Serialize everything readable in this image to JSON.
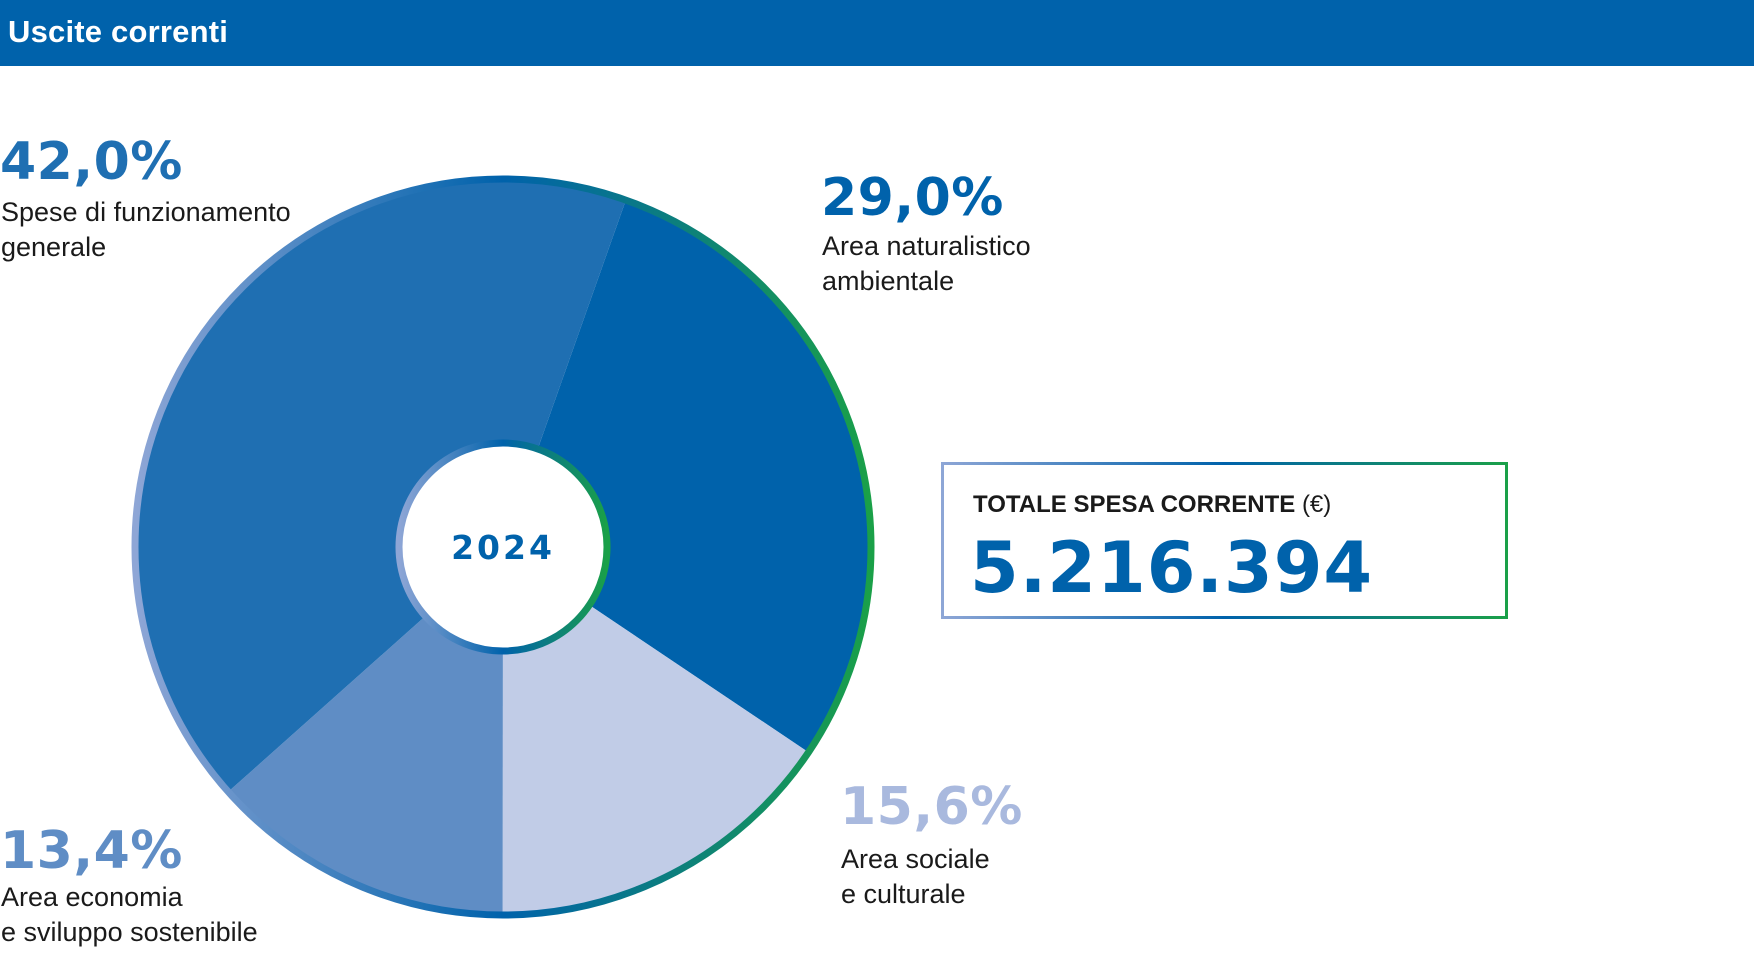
{
  "header": {
    "title": "Uscite correnti"
  },
  "chart_data": {
    "type": "pie",
    "center_label": "2024",
    "slices": [
      {
        "label_lines": [
          "Area naturalistico",
          "ambientale"
        ],
        "value": 29.0,
        "value_text": "29,0%",
        "color": "#0062ab",
        "text_color": "#0062ab"
      },
      {
        "label_lines": [
          "Area sociale",
          "e culturale"
        ],
        "value": 15.6,
        "value_text": "15,6%",
        "color": "#c1cce7",
        "text_color": "#a9b9de"
      },
      {
        "label_lines": [
          "Area economia",
          "e sviluppo sostenibile"
        ],
        "value": 13.4,
        "value_text": "13,4%",
        "color": "#5f8dc5",
        "text_color": "#5f8dc5"
      },
      {
        "label_lines": [
          "Spese di funzionamento",
          "generale"
        ],
        "value": 42.0,
        "value_text": "42,0%",
        "color": "#1f6fb2",
        "text_color": "#1f6fb2"
      }
    ],
    "rim_gradient": [
      "#8ea6d6",
      "#0062ab",
      "#1aa048"
    ]
  },
  "total": {
    "label_bold": "TOTALE SPESA CORRENTE",
    "label_unit": "(€)",
    "value": "5.216.394"
  }
}
